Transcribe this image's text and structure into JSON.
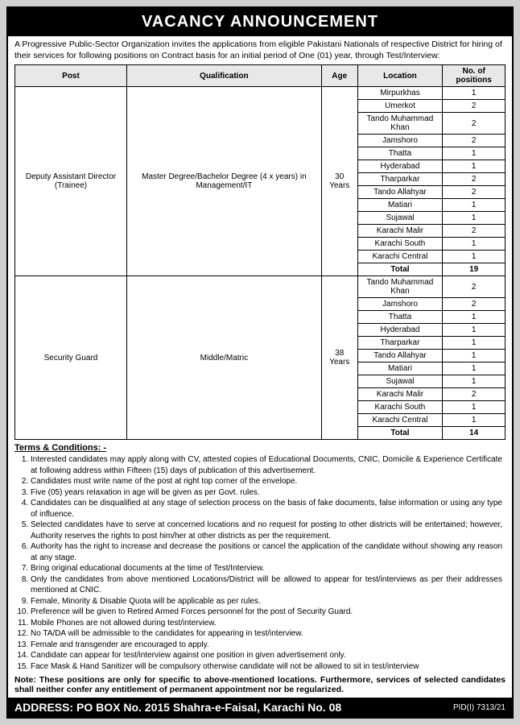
{
  "banner": "VACANCY ANNOUNCEMENT",
  "intro": "A Progressive Public-Sector Organization invites the applications from eligible Pakistani Nationals of respective District for hiring of their services for following positions on Contract basis for an initial period of One (01) year, through Test/Interview:",
  "headers": {
    "post": "Post",
    "qual": "Qualification",
    "age": "Age",
    "loc": "Location",
    "num": "No. of positions"
  },
  "group1": {
    "post": "Deputy Assistant Director (Trainee)",
    "qual": "Master Degree/Bachelor Degree (4 x years) in Management/IT",
    "age": "30 Years",
    "rows": [
      {
        "loc": "Mirpurkhas",
        "n": "1"
      },
      {
        "loc": "Umerkot",
        "n": "2"
      },
      {
        "loc": "Tando Muhammad Khan",
        "n": "2"
      },
      {
        "loc": "Jamshoro",
        "n": "2"
      },
      {
        "loc": "Thatta",
        "n": "1"
      },
      {
        "loc": "Hyderabad",
        "n": "1"
      },
      {
        "loc": "Tharparkar",
        "n": "2"
      },
      {
        "loc": "Tando Allahyar",
        "n": "2"
      },
      {
        "loc": "Matiari",
        "n": "1"
      },
      {
        "loc": "Sujawal",
        "n": "1"
      },
      {
        "loc": "Karachi Malir",
        "n": "2"
      },
      {
        "loc": "Karachi South",
        "n": "1"
      },
      {
        "loc": "Karachi Central",
        "n": "1"
      }
    ],
    "total_label": "Total",
    "total_value": "19"
  },
  "group2": {
    "post": "Security Guard",
    "qual": "Middle/Matric",
    "age": "38 Years",
    "rows": [
      {
        "loc": "Tando Muhammad Khan",
        "n": "2"
      },
      {
        "loc": "Jamshoro",
        "n": "2"
      },
      {
        "loc": "Thatta",
        "n": "1"
      },
      {
        "loc": "Hyderabad",
        "n": "1"
      },
      {
        "loc": "Tharparkar",
        "n": "1"
      },
      {
        "loc": "Tando Allahyar",
        "n": "1"
      },
      {
        "loc": "Matiari",
        "n": "1"
      },
      {
        "loc": "Sujawal",
        "n": "1"
      },
      {
        "loc": "Karachi Malir",
        "n": "2"
      },
      {
        "loc": "Karachi South",
        "n": "1"
      },
      {
        "loc": "Karachi Central",
        "n": "1"
      }
    ],
    "total_label": "Total",
    "total_value": "14"
  },
  "terms_heading": "Terms & Conditions: -",
  "terms": [
    "Interested candidates may apply along with CV, attested copies of Educational Documents, CNIC, Domicile & Experience Certificate at following address within Fifteen (15) days of publication of this advertisement.",
    "Candidates must write name of the post at right top corner of the envelope.",
    "Five (05) years relaxation in age will be given as per Govt. rules.",
    "Candidates can be disqualified at any stage of selection process on the basis of fake documents, false information or using any type of influence.",
    "Selected candidates have to serve at concerned locations and no request for posting to other districts will be entertained; however, Authority reserves the rights to post him/her at other districts as per the requirement.",
    "Authority has the right to increase and decrease the positions or cancel the application of the candidate without showing any reason at any stage.",
    "Bring original educational documents at the time of Test/Interview.",
    "Only the candidates from above mentioned Locations/District will be allowed to appear for test/interviews as per their addresses mentioned at CNIC.",
    "Female, Minority & Disable Quota will be applicable as per rules.",
    "Preference will be given to Retired Armed Forces personnel for the post of Security Guard.",
    "Mobile Phones are not allowed during test/interview.",
    "No TA/DA will be admissible to the candidates for appearing in test/interview.",
    "Female and transgender are encouraged to apply.",
    "Candidate can appear for test/interview against one position in given advertisement only.",
    "Face Mask & Hand Sanitizer will be compulsory otherwise candidate will not be allowed to sit in test/interview"
  ],
  "note": "Note: These positions are only for specific to above-mentioned locations. Furthermore, services of selected candidates shall neither confer any entitlement of permanent appointment nor be regularized.",
  "address_label": "ADDRESS:",
  "address_value": "PO BOX No. 2015 Shahra-e-Faisal, Karachi No. 08",
  "pid": "PID(I) 7313/21"
}
